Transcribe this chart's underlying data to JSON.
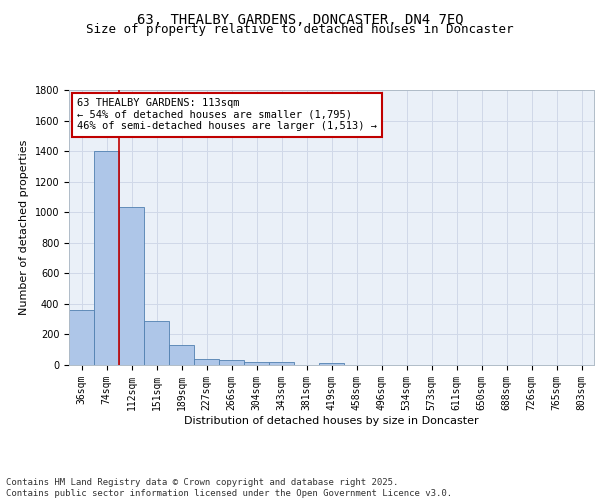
{
  "title_line1": "63, THEALBY GARDENS, DONCASTER, DN4 7EQ",
  "title_line2": "Size of property relative to detached houses in Doncaster",
  "xlabel": "Distribution of detached houses by size in Doncaster",
  "ylabel": "Number of detached properties",
  "bar_values": [
    360,
    1400,
    1035,
    290,
    130,
    42,
    35,
    22,
    18,
    0,
    15,
    0,
    0,
    0,
    0,
    0,
    0,
    0,
    0,
    0,
    0
  ],
  "bar_labels": [
    "36sqm",
    "74sqm",
    "112sqm",
    "151sqm",
    "189sqm",
    "227sqm",
    "266sqm",
    "304sqm",
    "343sqm",
    "381sqm",
    "419sqm",
    "458sqm",
    "496sqm",
    "534sqm",
    "573sqm",
    "611sqm",
    "650sqm",
    "688sqm",
    "726sqm",
    "765sqm",
    "803sqm"
  ],
  "bar_color": "#aec6e8",
  "bar_edge_color": "#5080b0",
  "grid_color": "#d0d8e8",
  "background_color": "#eaf0f8",
  "vline_x": 2.0,
  "vline_color": "#c00000",
  "annotation_text": "63 THEALBY GARDENS: 113sqm\n← 54% of detached houses are smaller (1,795)\n46% of semi-detached houses are larger (1,513) →",
  "annotation_box_color": "#ffffff",
  "annotation_box_edge_color": "#c00000",
  "ylim": [
    0,
    1800
  ],
  "yticks": [
    0,
    200,
    400,
    600,
    800,
    1000,
    1200,
    1400,
    1600,
    1800
  ],
  "footer_text": "Contains HM Land Registry data © Crown copyright and database right 2025.\nContains public sector information licensed under the Open Government Licence v3.0.",
  "title_fontsize": 10,
  "subtitle_fontsize": 9,
  "axis_label_fontsize": 8,
  "tick_fontsize": 7,
  "annotation_fontsize": 7.5,
  "footer_fontsize": 6.5
}
